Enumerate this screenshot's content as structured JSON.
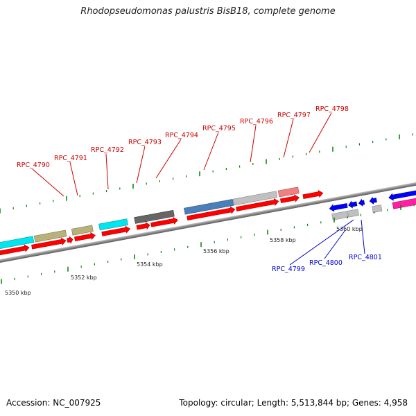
{
  "title": "Rhodopseudomonas palustris BisB18, complete genome",
  "accession_label": "Accession: NC_007925",
  "summary": "Topology: circular; Length: 5,513,844 bp; Genes: 4,958",
  "colors": {
    "cds_forward": "#ff0000",
    "cds_reverse": "#0000ff",
    "label_forward": "#cc0000",
    "label_reverse": "#0000cc",
    "backbone": "#808080",
    "tick": "#008000"
  },
  "tick_labels": [
    "5350 kbp",
    "5352 kbp",
    "5354 kbp",
    "5356 kbp",
    "5358 kbp",
    "5360 kbp"
  ],
  "genes_forward": [
    "RPC_4790",
    "RPC_4791",
    "RPC_4792",
    "RPC_4793",
    "RPC_4794",
    "RPC_4795",
    "RPC_4796",
    "RPC_4797",
    "RPC_4798"
  ],
  "genes_reverse": [
    "RPC_4799",
    "RPC_4800",
    "RPC_4801"
  ]
}
